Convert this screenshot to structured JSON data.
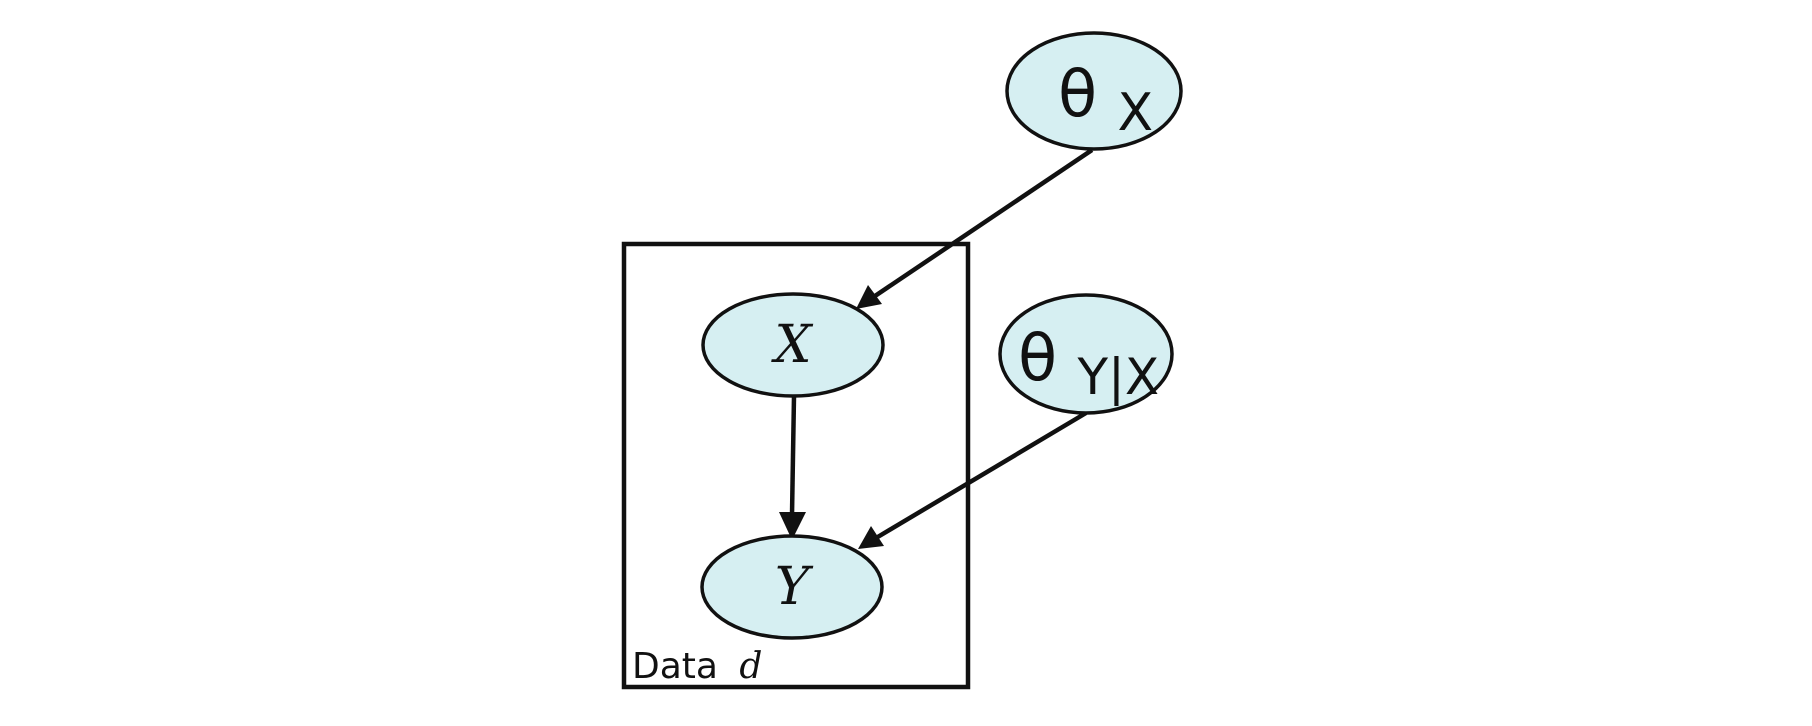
{
  "diagram": {
    "nodes": {
      "theta_x": {
        "symbol": "θ",
        "subscript": "X"
      },
      "theta_y_given_x": {
        "symbol": "θ",
        "subscript": "Y|X"
      },
      "x": {
        "label": "X"
      },
      "y": {
        "label": "Y"
      }
    },
    "plate": {
      "label_prefix": "Data",
      "label_var": "d"
    },
    "colors": {
      "node_fill": "#d6eff2",
      "stroke": "#111111",
      "background": "#ffffff"
    }
  }
}
